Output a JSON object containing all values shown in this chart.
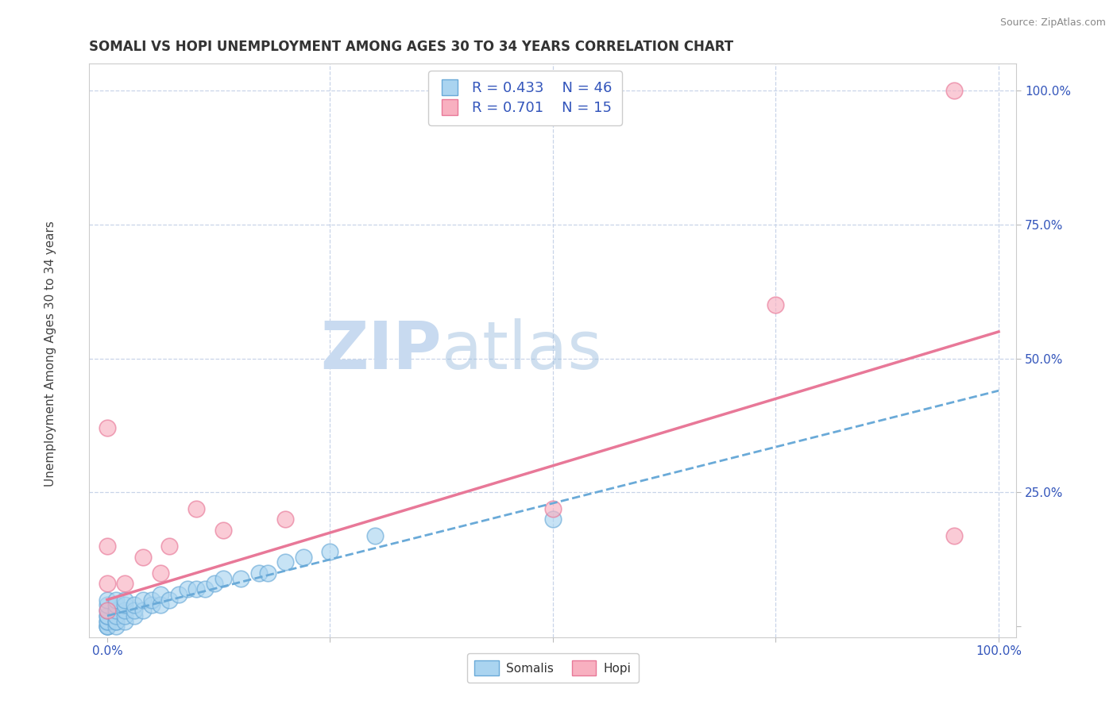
{
  "title": "SOMALI VS HOPI UNEMPLOYMENT AMONG AGES 30 TO 34 YEARS CORRELATION CHART",
  "source": "Source: ZipAtlas.com",
  "ylabel": "Unemployment Among Ages 30 to 34 years",
  "xlabel": "",
  "xlim": [
    -0.02,
    1.02
  ],
  "ylim": [
    -0.02,
    1.05
  ],
  "somali_R": 0.433,
  "somali_N": 46,
  "hopi_R": 0.701,
  "hopi_N": 15,
  "somali_color": "#aad4f0",
  "somali_edge": "#6aaad8",
  "hopi_color": "#f8b0c0",
  "hopi_edge": "#e87898",
  "trendline_somali_color": "#6aaad8",
  "trendline_hopi_color": "#e87898",
  "watermark_zip": "ZIP",
  "watermark_atlas": "atlas",
  "background_color": "#ffffff",
  "grid_color": "#c8d4e8",
  "somali_x": [
    0.0,
    0.0,
    0.0,
    0.0,
    0.0,
    0.0,
    0.0,
    0.0,
    0.0,
    0.0,
    0.01,
    0.01,
    0.01,
    0.01,
    0.01,
    0.01,
    0.01,
    0.02,
    0.02,
    0.02,
    0.02,
    0.02,
    0.03,
    0.03,
    0.03,
    0.04,
    0.04,
    0.05,
    0.05,
    0.06,
    0.06,
    0.07,
    0.08,
    0.09,
    0.1,
    0.11,
    0.12,
    0.13,
    0.15,
    0.17,
    0.18,
    0.2,
    0.22,
    0.25,
    0.3,
    0.5
  ],
  "somali_y": [
    0.0,
    0.0,
    0.0,
    0.01,
    0.01,
    0.02,
    0.02,
    0.03,
    0.04,
    0.05,
    0.0,
    0.01,
    0.01,
    0.02,
    0.03,
    0.04,
    0.05,
    0.01,
    0.02,
    0.03,
    0.04,
    0.05,
    0.02,
    0.03,
    0.04,
    0.03,
    0.05,
    0.04,
    0.05,
    0.04,
    0.06,
    0.05,
    0.06,
    0.07,
    0.07,
    0.07,
    0.08,
    0.09,
    0.09,
    0.1,
    0.1,
    0.12,
    0.13,
    0.14,
    0.17,
    0.2
  ],
  "hopi_x": [
    0.0,
    0.0,
    0.0,
    0.0,
    0.02,
    0.04,
    0.06,
    0.07,
    0.1,
    0.13,
    0.2,
    0.5,
    0.75,
    0.95,
    0.95
  ],
  "hopi_y": [
    0.03,
    0.08,
    0.15,
    0.37,
    0.08,
    0.13,
    0.1,
    0.15,
    0.22,
    0.18,
    0.2,
    0.22,
    0.6,
    0.17,
    1.0
  ],
  "hopi_trendline_x0": 0.0,
  "hopi_trendline_y0": 0.05,
  "hopi_trendline_x1": 1.0,
  "hopi_trendline_y1": 0.55,
  "somali_trendline_x0": 0.0,
  "somali_trendline_y0": 0.02,
  "somali_trendline_x1": 1.0,
  "somali_trendline_y1": 0.44
}
